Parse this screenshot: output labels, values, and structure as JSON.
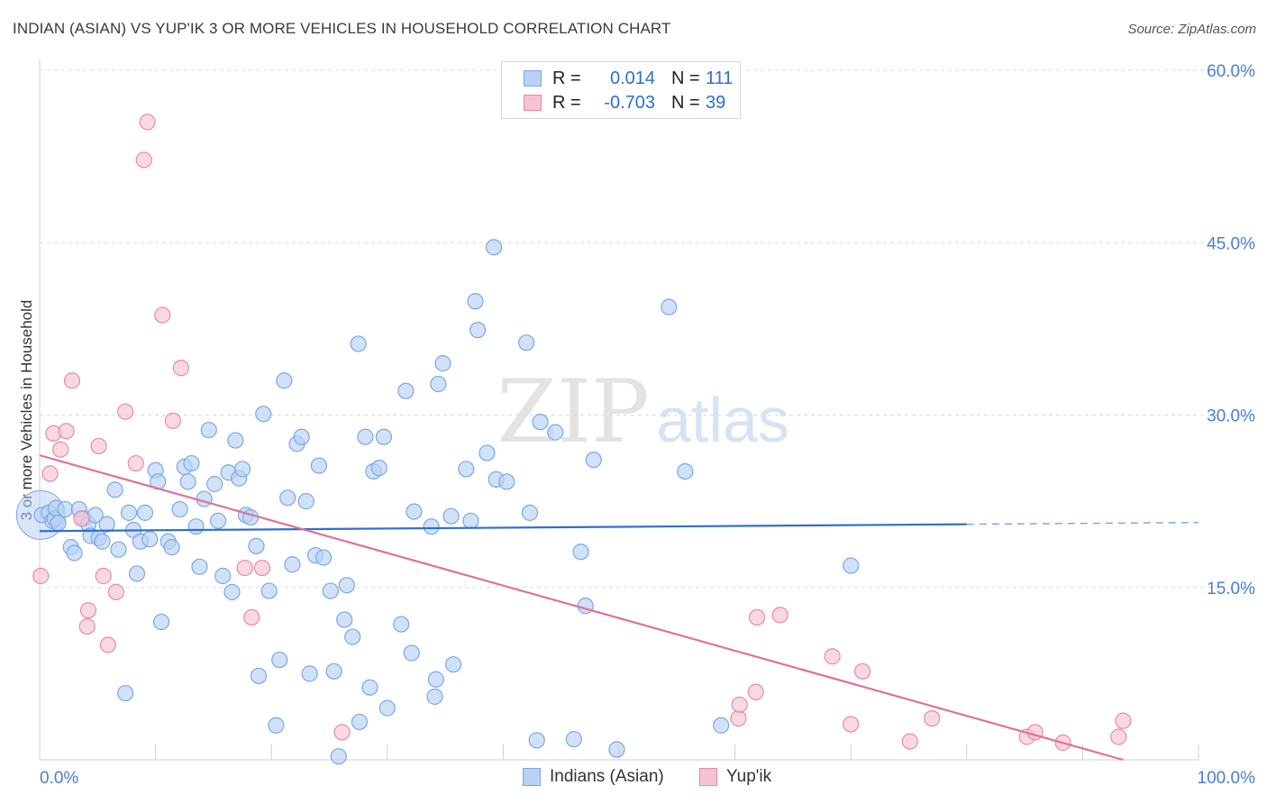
{
  "title": "INDIAN (ASIAN) VS YUP'IK 3 OR MORE VEHICLES IN HOUSEHOLD CORRELATION CHART",
  "source": "Source: ZipAtlas.com",
  "watermark": {
    "zip": "ZIP",
    "atlas": "atlas"
  },
  "legend": {
    "r_label": "R =",
    "n_label": "N =",
    "series": [
      {
        "name": "Indians (Asian)",
        "r": "0.014",
        "n": "111",
        "color": "#7aa8e6",
        "fill": "#b9d1f4"
      },
      {
        "name": "Yup'ik",
        "r": "-0.703",
        "n": "39",
        "color": "#e88aa8",
        "fill": "#f6c3d3"
      }
    ]
  },
  "chart_data": {
    "type": "scatter",
    "title": "INDIAN (ASIAN) VS YUP'IK 3 OR MORE VEHICLES IN HOUSEHOLD CORRELATION CHART",
    "xlabel": "",
    "ylabel": "3 or more Vehicles in Household",
    "xlim": [
      0,
      100
    ],
    "ylim": [
      0,
      60
    ],
    "x_tick_labels": [
      "0.0%",
      "100.0%"
    ],
    "y_ticks": [
      15,
      30,
      45,
      60
    ],
    "y_tick_labels": [
      "15.0%",
      "30.0%",
      "45.0%",
      "60.0%"
    ],
    "grid": true,
    "series": [
      {
        "name": "Indians (Asian)",
        "color": "#7aa8e6",
        "trend": {
          "x0": 0,
          "y0": 19.9,
          "x1": 80,
          "y1": 20.5,
          "dash_to": 100
        },
        "points": [
          [
            0.2,
            21.3
          ],
          [
            0.8,
            21.5
          ],
          [
            1.1,
            20.8
          ],
          [
            1.3,
            21.0
          ],
          [
            1.4,
            21.9
          ],
          [
            1.6,
            20.6
          ],
          [
            2.2,
            21.8
          ],
          [
            2.7,
            18.5
          ],
          [
            3.0,
            18.0
          ],
          [
            3.4,
            21.8
          ],
          [
            3.8,
            21.0
          ],
          [
            4.2,
            20.5
          ],
          [
            4.4,
            19.5
          ],
          [
            4.8,
            21.3
          ],
          [
            5.1,
            19.3
          ],
          [
            5.4,
            19.0
          ],
          [
            5.8,
            20.5
          ],
          [
            6.5,
            23.5
          ],
          [
            6.8,
            18.3
          ],
          [
            7.4,
            5.8
          ],
          [
            7.7,
            21.5
          ],
          [
            8.1,
            20.0
          ],
          [
            8.4,
            16.2
          ],
          [
            8.7,
            19.0
          ],
          [
            9.1,
            21.5
          ],
          [
            9.5,
            19.2
          ],
          [
            10.0,
            25.2
          ],
          [
            10.2,
            24.2
          ],
          [
            10.5,
            12.0
          ],
          [
            11.1,
            19.0
          ],
          [
            11.4,
            18.5
          ],
          [
            12.1,
            21.8
          ],
          [
            12.5,
            25.5
          ],
          [
            12.8,
            24.2
          ],
          [
            13.1,
            25.8
          ],
          [
            13.5,
            20.3
          ],
          [
            13.8,
            16.8
          ],
          [
            14.2,
            22.7
          ],
          [
            14.6,
            28.7
          ],
          [
            15.1,
            24.0
          ],
          [
            15.4,
            20.8
          ],
          [
            15.8,
            16.0
          ],
          [
            16.3,
            25.0
          ],
          [
            16.6,
            14.6
          ],
          [
            16.9,
            27.8
          ],
          [
            17.2,
            24.5
          ],
          [
            17.5,
            25.3
          ],
          [
            17.8,
            21.3
          ],
          [
            18.2,
            21.1
          ],
          [
            18.7,
            18.6
          ],
          [
            18.9,
            7.3
          ],
          [
            19.3,
            30.1
          ],
          [
            19.8,
            14.7
          ],
          [
            20.4,
            3.0
          ],
          [
            20.7,
            8.7
          ],
          [
            21.1,
            33.0
          ],
          [
            21.4,
            22.8
          ],
          [
            21.8,
            17.0
          ],
          [
            22.2,
            27.5
          ],
          [
            22.6,
            28.1
          ],
          [
            23.0,
            22.5
          ],
          [
            23.3,
            7.5
          ],
          [
            23.8,
            17.8
          ],
          [
            24.1,
            25.6
          ],
          [
            24.5,
            17.6
          ],
          [
            25.1,
            14.7
          ],
          [
            25.4,
            7.7
          ],
          [
            25.8,
            0.3
          ],
          [
            26.3,
            12.2
          ],
          [
            26.5,
            15.2
          ],
          [
            27.0,
            10.7
          ],
          [
            27.5,
            36.2
          ],
          [
            27.6,
            3.3
          ],
          [
            28.1,
            28.1
          ],
          [
            28.5,
            6.3
          ],
          [
            28.8,
            25.1
          ],
          [
            29.3,
            25.4
          ],
          [
            29.7,
            28.1
          ],
          [
            30.0,
            4.5
          ],
          [
            31.2,
            11.8
          ],
          [
            31.6,
            32.1
          ],
          [
            32.1,
            9.3
          ],
          [
            32.3,
            21.6
          ],
          [
            33.8,
            20.3
          ],
          [
            34.1,
            5.5
          ],
          [
            34.2,
            7.0
          ],
          [
            34.4,
            32.7
          ],
          [
            34.8,
            34.5
          ],
          [
            35.5,
            21.2
          ],
          [
            35.7,
            8.3
          ],
          [
            36.8,
            25.3
          ],
          [
            37.2,
            20.8
          ],
          [
            37.6,
            39.9
          ],
          [
            37.8,
            37.4
          ],
          [
            38.6,
            26.7
          ],
          [
            39.2,
            44.6
          ],
          [
            39.4,
            24.4
          ],
          [
            40.3,
            24.2
          ],
          [
            42.0,
            36.3
          ],
          [
            42.3,
            21.5
          ],
          [
            42.9,
            1.7
          ],
          [
            43.2,
            29.4
          ],
          [
            44.5,
            28.5
          ],
          [
            46.1,
            1.8
          ],
          [
            46.7,
            18.1
          ],
          [
            47.1,
            13.4
          ],
          [
            47.8,
            26.1
          ],
          [
            49.8,
            0.9
          ],
          [
            54.3,
            39.4
          ],
          [
            55.7,
            25.1
          ],
          [
            58.8,
            3.0
          ],
          [
            70.0,
            16.9
          ]
        ]
      },
      {
        "name": "Yup'ik",
        "color": "#e88aa8",
        "trend": {
          "x0": 0,
          "y0": 26.5,
          "x1": 93.5,
          "y1": 0
        },
        "points": [
          [
            0.1,
            16.0
          ],
          [
            0.9,
            24.9
          ],
          [
            1.2,
            28.4
          ],
          [
            1.8,
            27.0
          ],
          [
            2.3,
            28.6
          ],
          [
            2.8,
            33.0
          ],
          [
            3.6,
            21.0
          ],
          [
            4.1,
            11.6
          ],
          [
            4.2,
            13.0
          ],
          [
            5.1,
            27.3
          ],
          [
            5.5,
            16.0
          ],
          [
            5.9,
            10.0
          ],
          [
            6.6,
            14.6
          ],
          [
            7.4,
            30.3
          ],
          [
            8.3,
            25.8
          ],
          [
            9.0,
            52.2
          ],
          [
            9.3,
            55.5
          ],
          [
            10.6,
            38.7
          ],
          [
            11.5,
            29.5
          ],
          [
            12.2,
            34.1
          ],
          [
            17.7,
            16.7
          ],
          [
            18.3,
            12.4
          ],
          [
            19.2,
            16.7
          ],
          [
            26.1,
            2.4
          ],
          [
            60.3,
            3.6
          ],
          [
            60.4,
            4.8
          ],
          [
            61.8,
            5.9
          ],
          [
            61.9,
            12.4
          ],
          [
            63.9,
            12.6
          ],
          [
            68.4,
            9.0
          ],
          [
            70.0,
            3.1
          ],
          [
            71.0,
            7.7
          ],
          [
            75.1,
            1.6
          ],
          [
            77.0,
            3.6
          ],
          [
            85.2,
            2.0
          ],
          [
            85.9,
            2.4
          ],
          [
            88.3,
            1.5
          ],
          [
            93.1,
            2.0
          ],
          [
            93.5,
            3.4
          ]
        ]
      }
    ]
  }
}
